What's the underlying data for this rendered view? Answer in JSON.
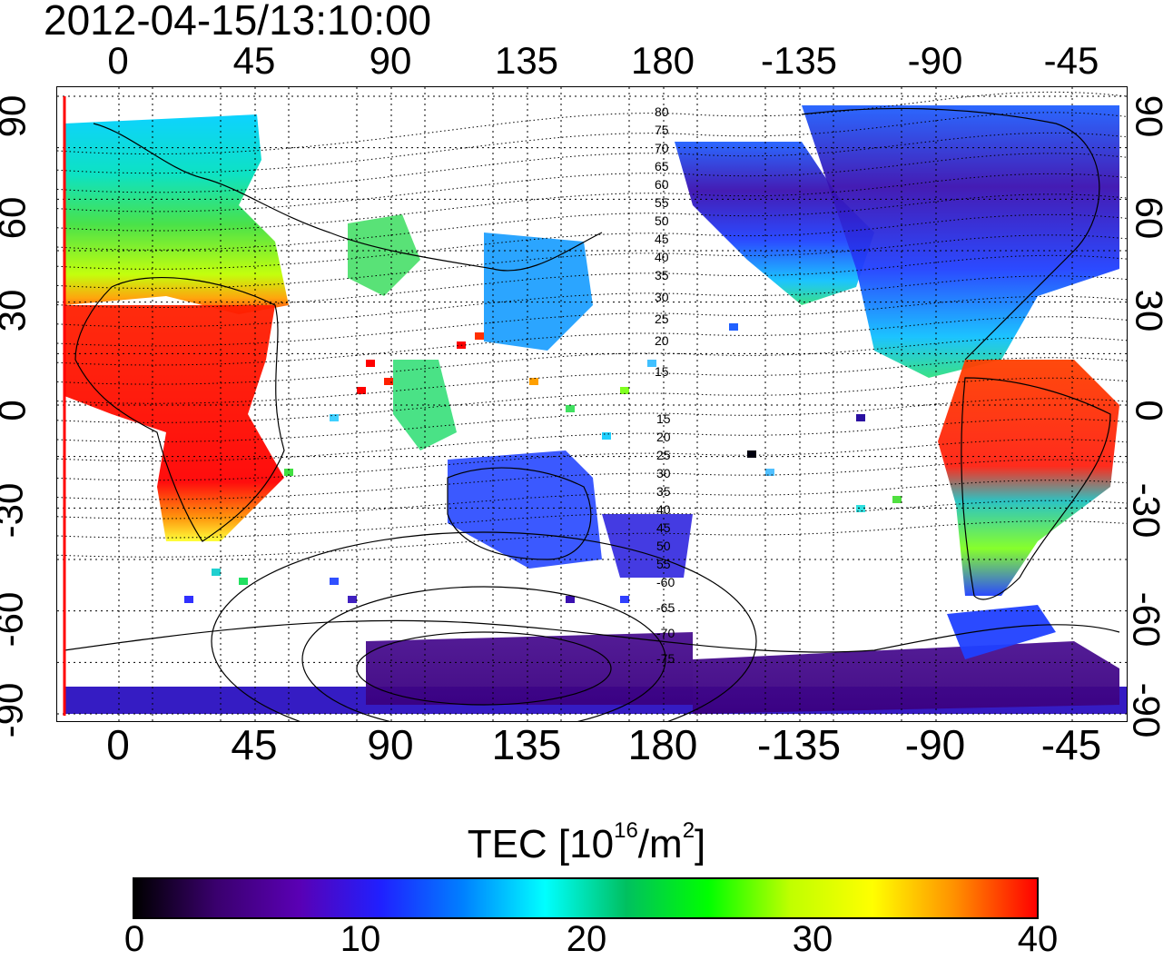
{
  "timestamp": "2012-04-15/13:10:00",
  "top_ticks": [
    "0",
    "45",
    "90",
    "135",
    "180",
    "-135",
    "-90",
    "-45"
  ],
  "bottom_ticks": [
    "0",
    "45",
    "90",
    "135",
    "180",
    "-135",
    "-90",
    "-45"
  ],
  "left_ticks": [
    "90",
    "60",
    "30",
    "0",
    "-30",
    "-60",
    "-90"
  ],
  "right_ticks": [
    "90",
    "60",
    "30",
    "0",
    "-30",
    "-60",
    "-90"
  ],
  "magnetic_latitude_labels_north": [
    "80",
    "75",
    "70",
    "65",
    "60",
    "55",
    "50",
    "45",
    "40",
    "35",
    "30",
    "25",
    "20",
    "15"
  ],
  "magnetic_latitude_labels_south": [
    "15",
    "20",
    "25",
    "30",
    "35",
    "40",
    "45",
    "50",
    "55",
    "60",
    "65",
    "70",
    "75"
  ],
  "colorbar": {
    "title_prefix": "TEC  [10",
    "title_exp1": "16",
    "title_mid": "/m",
    "title_exp2": "2",
    "title_suffix": "]",
    "ticks": [
      "0",
      "10",
      "20",
      "30",
      "40"
    ],
    "range": [
      0,
      40
    ],
    "colors": [
      "#000000",
      "#3a006e",
      "#5a00b4",
      "#2020ff",
      "#0080ff",
      "#00ffff",
      "#00c060",
      "#00ff00",
      "#c0ff00",
      "#ffff00",
      "#ff9000",
      "#ff0000"
    ]
  },
  "terminator_color": "#ff0000"
}
